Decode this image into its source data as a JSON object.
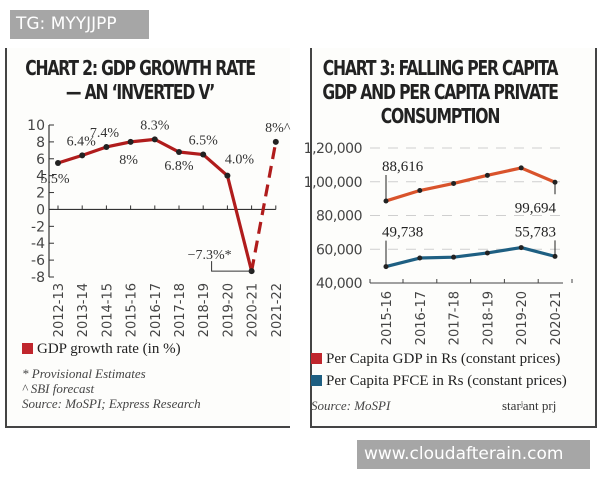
{
  "watermarks": {
    "top": "TG: MYYJJPP",
    "bottom": "www.cloudafterain.com"
  },
  "chart_data": [
    {
      "type": "line",
      "title": "CHART 2: GDP GROWTH RATE — AN ‘INVERTED V’",
      "title_lines": [
        "CHART 2: GDP GROWTH RATE",
        "— AN ‘INVERTED V’"
      ],
      "xlabel": "",
      "ylabel": "",
      "categories": [
        "2012-13",
        "2013-14",
        "2014-15",
        "2015-16",
        "2016-17",
        "2017-18",
        "2018-19",
        "2019-20",
        "2020-21",
        "2021-22"
      ],
      "ylim": [
        -8,
        10
      ],
      "yticks": [
        10,
        8,
        6,
        4,
        2,
        0,
        -2,
        -4,
        -6,
        -8
      ],
      "series": [
        {
          "name": "GDP growth rate (in %)",
          "color": "#b01c1c",
          "values": [
            5.5,
            6.4,
            7.4,
            8.0,
            8.3,
            6.8,
            6.5,
            4.0,
            -7.3,
            8.0
          ],
          "data_labels": [
            "5.5%",
            "6.4%",
            "7.4%",
            "8%",
            "8.3%",
            "6.8%",
            "6.5%",
            "4.0%",
            "−7.3%*",
            "8%^"
          ],
          "dashed_last_segment": true
        }
      ],
      "legend": {
        "label": "GDP growth rate (in %)",
        "color": "#c0262d",
        "placement": "bottom-left"
      },
      "notes": [
        "* Provisional Estimates",
        "^ SBI forecast",
        "Source: MoSPI; Express Research"
      ],
      "grid": false
    },
    {
      "type": "line",
      "title": "CHART 3: FALLING PER CAPITA GDP AND PER CAPITA PRIVATE CONSUMPTION",
      "title_lines": [
        "CHART 3: FALLING PER CAPITA",
        "GDP  AND PER CAPITA PRIVATE",
        "CONSUMPTION"
      ],
      "categories": [
        "2015-16",
        "2016-17",
        "2017-18",
        "2018-19",
        "2019-20",
        "2020-21"
      ],
      "ylim": [
        40000,
        120000
      ],
      "yticks": [
        "1,20,000",
        "1,00,000",
        "80,000",
        "60,000",
        "40,000"
      ],
      "ytick_values": [
        120000,
        100000,
        80000,
        60000,
        40000
      ],
      "series": [
        {
          "name": "Per Capita GDP in Rs (constant prices)",
          "color": "#d9532b",
          "values": [
            88616,
            94800,
            99000,
            103800,
            108200,
            99694
          ],
          "data_labels": [
            "88,616",
            "",
            "",
            "",
            "",
            "99,694"
          ]
        },
        {
          "name": "Per Capita PFCE in Rs (constant prices)",
          "color": "#1e5f82",
          "values": [
            49738,
            54800,
            55300,
            57800,
            61000,
            55783
          ],
          "data_labels": [
            "49,738",
            "",
            "",
            "",
            "",
            "55,783"
          ]
        }
      ],
      "legend": [
        {
          "label": "Per Capita GDP in Rs (constant prices)",
          "color": "#c0262d"
        },
        {
          "label": "Per Capita PFCE in Rs (constant prices)",
          "color": "#1e5f82"
        }
      ],
      "legend_placement": "bottom",
      "notes": [
        "Source: MoSPI"
      ],
      "cut_text": "starʲant prj",
      "grid": true
    }
  ]
}
